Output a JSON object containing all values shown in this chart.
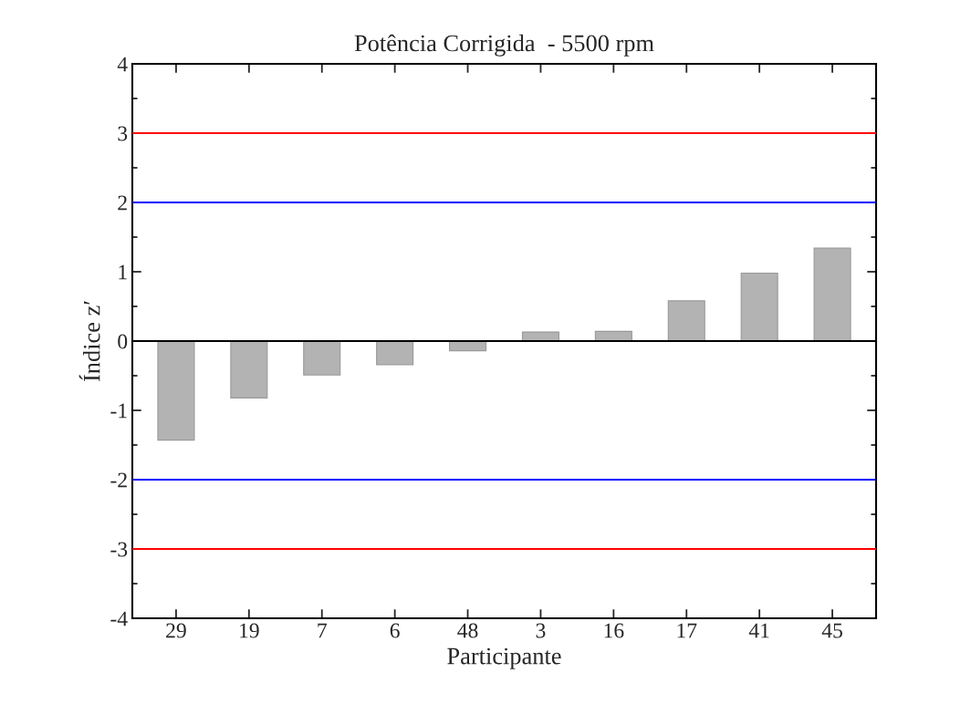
{
  "chart_data": {
    "type": "bar",
    "title": "Potência Corrigida  - 5500 rpm",
    "xlabel": "Participante",
    "ylabel": "Índice z′",
    "categories": [
      "29",
      "19",
      "7",
      "6",
      "48",
      "3",
      "16",
      "17",
      "41",
      "45"
    ],
    "values": [
      -1.43,
      -0.82,
      -0.49,
      -0.34,
      -0.14,
      0.13,
      0.14,
      0.58,
      0.98,
      1.34
    ],
    "color": "#b3b3b3",
    "ylim": [
      -4,
      4
    ],
    "yticks": [
      -4,
      -3,
      -2,
      -1,
      0,
      1,
      2,
      3,
      4
    ],
    "grid": false,
    "ref_lines": [
      {
        "axis": "y",
        "value": 3,
        "color": "#ff0000"
      },
      {
        "axis": "y",
        "value": 2,
        "color": "#0000ff"
      },
      {
        "axis": "y",
        "value": 0,
        "color": "#000000"
      },
      {
        "axis": "y",
        "value": -2,
        "color": "#0000ff"
      },
      {
        "axis": "y",
        "value": -3,
        "color": "#ff0000"
      }
    ]
  }
}
